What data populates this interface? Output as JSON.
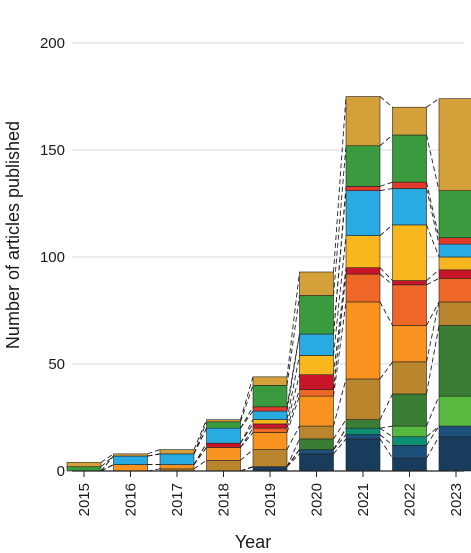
{
  "chart_data": {
    "type": "bar",
    "stacked": true,
    "connectors": "dashed lines join matching segment boundaries between adjacent bars",
    "xlabel": "Year",
    "ylabel": "Number of articles published",
    "ylim": [
      0,
      220
    ],
    "yticks": [
      0,
      50,
      100,
      150,
      200
    ],
    "grid": "horizontal",
    "legend": "none",
    "categories": [
      "2015",
      "2016",
      "2017",
      "2018",
      "2019",
      "2020",
      "2021",
      "2022",
      "2023"
    ],
    "segment_colors": [
      "#173c5c",
      "#1d4f7b",
      "#0f8e76",
      "#58b940",
      "#3a7d35",
      "#b9852d",
      "#f7931e",
      "#ee6727",
      "#c8152a",
      "#f8b71d",
      "#29aae1",
      "#e03a2f",
      "#399b3d",
      "#d4a03a"
    ],
    "stacks": [
      {
        "year": "2015",
        "values": [
          0,
          0,
          0,
          0,
          0,
          0,
          0,
          0,
          0,
          0,
          0,
          0,
          2,
          2
        ]
      },
      {
        "year": "2016",
        "values": [
          0,
          0,
          0,
          0,
          0,
          0,
          3,
          0,
          0,
          0,
          4,
          0,
          0,
          1
        ]
      },
      {
        "year": "2017",
        "values": [
          0,
          0,
          0,
          0,
          0,
          1,
          2,
          0,
          0,
          0,
          5,
          0,
          0,
          2
        ]
      },
      {
        "year": "2018",
        "values": [
          0,
          0,
          0,
          0,
          0,
          5,
          6,
          0,
          2,
          0,
          7,
          0,
          3,
          1
        ]
      },
      {
        "year": "2019",
        "values": [
          2,
          0,
          0,
          0,
          0,
          8,
          8,
          2,
          2,
          2,
          4,
          2,
          10,
          4
        ]
      },
      {
        "year": "2020",
        "values": [
          8,
          2,
          0,
          0,
          5,
          6,
          14,
          3,
          7,
          9,
          10,
          0,
          18,
          11
        ]
      },
      {
        "year": "2021",
        "values": [
          15,
          2,
          3,
          0,
          4,
          19,
          36,
          13,
          3,
          15,
          21,
          2,
          19,
          23
        ]
      },
      {
        "year": "2022",
        "values": [
          6,
          6,
          4,
          5,
          15,
          15,
          17,
          19,
          2,
          26,
          17,
          3,
          22,
          13
        ]
      },
      {
        "year": "2023",
        "values": [
          16,
          5,
          0,
          14,
          33,
          11,
          0,
          11,
          4,
          6,
          6,
          3,
          22,
          43
        ]
      }
    ]
  }
}
